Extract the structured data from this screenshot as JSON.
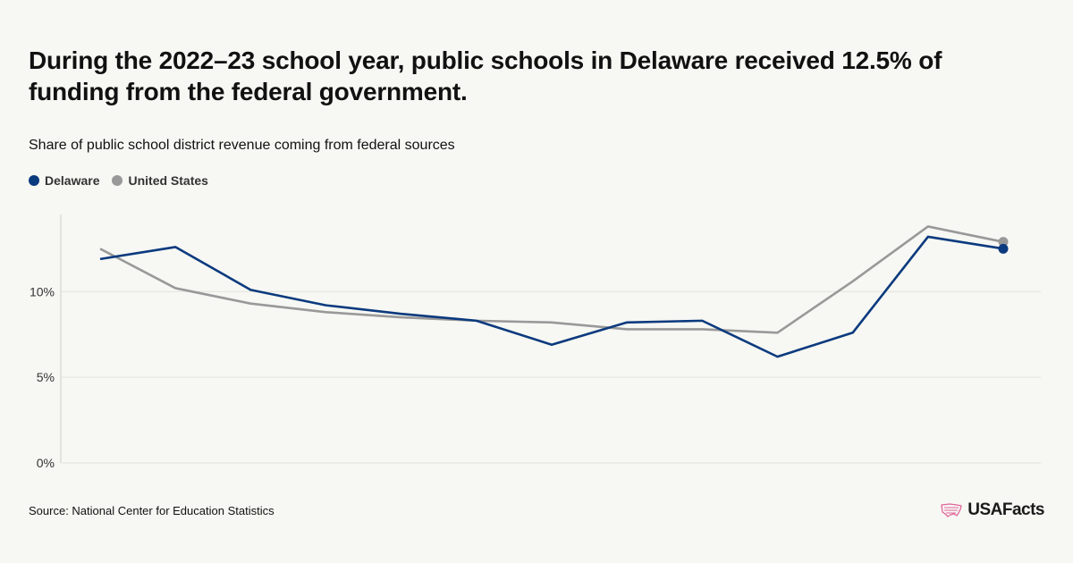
{
  "title": "During the 2022–23 school year, public schools in Delaware received 12.5% of funding from the federal government.",
  "subtitle": "Share of public school district revenue coming from federal sources",
  "source": "Source: National Center for Education Statistics",
  "brand": "USAFacts",
  "colors": {
    "delaware": "#0b3a7e",
    "us": "#999999",
    "grid": "#e3e3de",
    "axis": "#cccccc"
  },
  "chart_data": {
    "type": "line",
    "title": "During the 2022–23 school year, public schools in Delaware received 12.5% of funding from the federal government.",
    "subtitle": "Share of public school district revenue coming from federal sources",
    "xlabel": "",
    "ylabel": "",
    "ylim": [
      0,
      14.5
    ],
    "yticks": [
      0,
      5,
      10
    ],
    "ytick_labels": [
      "0%",
      "5%",
      "10%"
    ],
    "grid": true,
    "legend_position": "top-left",
    "series": [
      {
        "name": "Delaware",
        "color": "#0b3a7e",
        "values": [
          11.9,
          12.6,
          10.1,
          9.2,
          8.7,
          8.3,
          6.9,
          8.2,
          8.3,
          6.2,
          7.6,
          13.2,
          12.5
        ]
      },
      {
        "name": "United States",
        "color": "#999999",
        "values": [
          12.5,
          10.2,
          9.3,
          8.8,
          8.5,
          8.3,
          8.2,
          7.8,
          7.8,
          7.6,
          10.6,
          13.8,
          12.9
        ]
      }
    ]
  }
}
